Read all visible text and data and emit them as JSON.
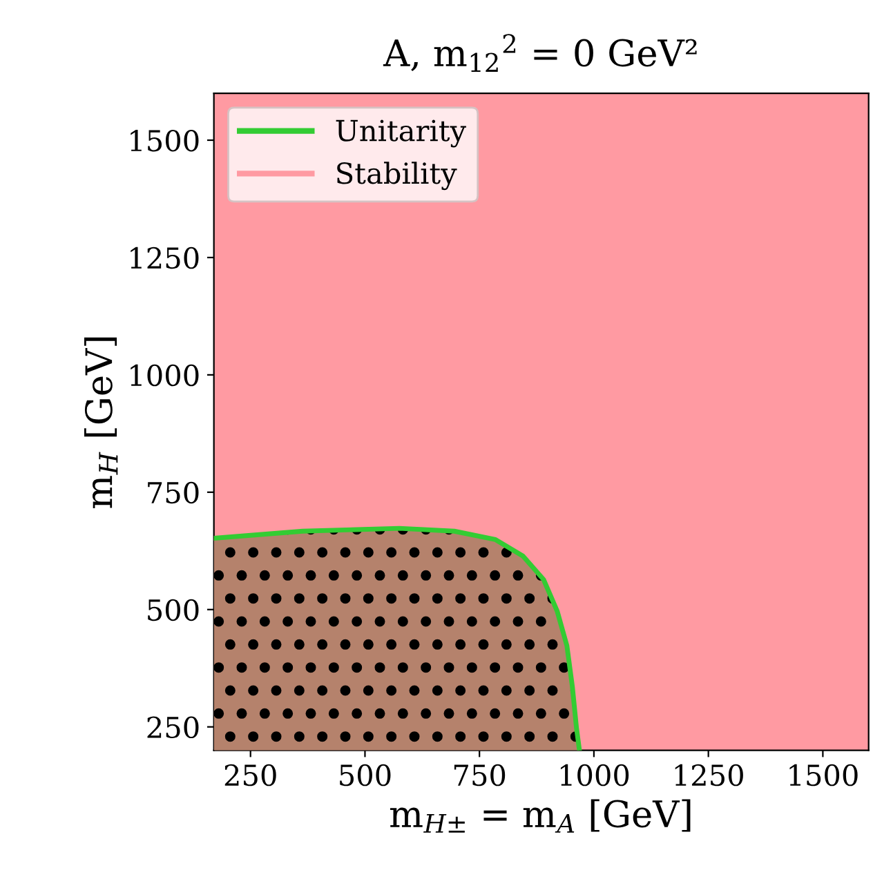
{
  "chart_data": {
    "type": "area",
    "title": "A, m$_{12}$$^{2}$ = 0 GeV²",
    "xlabel": "m$_{H±}$ = m$_{A}$ [GeV]",
    "ylabel": "m$_{H}$ [GeV]",
    "series": [
      {
        "name": "Unitarity",
        "color": "#33cc33",
        "colors": [
          "#b5826c",
          "#b5826c",
          "#b5826c",
          "#b5826c",
          "#b5826c",
          "#b5826c",
          "#b5826c",
          "#b5826c",
          "#b5826c",
          "#b5826c",
          "#b5826c",
          "#b5826c"
        ],
        "x": [
          170,
          364,
          575,
          695,
          785,
          845,
          890,
          920,
          941,
          953,
          962,
          968
        ],
        "values": [
          652,
          667,
          673,
          667,
          649,
          614,
          564,
          496,
          423,
          335,
          247,
          203
        ]
      }
    ],
    "bands": [
      {
        "axis": "y",
        "from": 200,
        "to": 1600,
        "label": "Stability",
        "color": "#ff9aa2"
      }
    ],
    "xlim": [
      170,
      1600
    ],
    "ylim": [
      200,
      1600
    ],
    "xticks": [
      250,
      500,
      750,
      1000,
      1250,
      1500
    ],
    "yticks": [
      250,
      500,
      750,
      1000,
      1250,
      1500
    ],
    "legend": "top left",
    "grid": false
  }
}
